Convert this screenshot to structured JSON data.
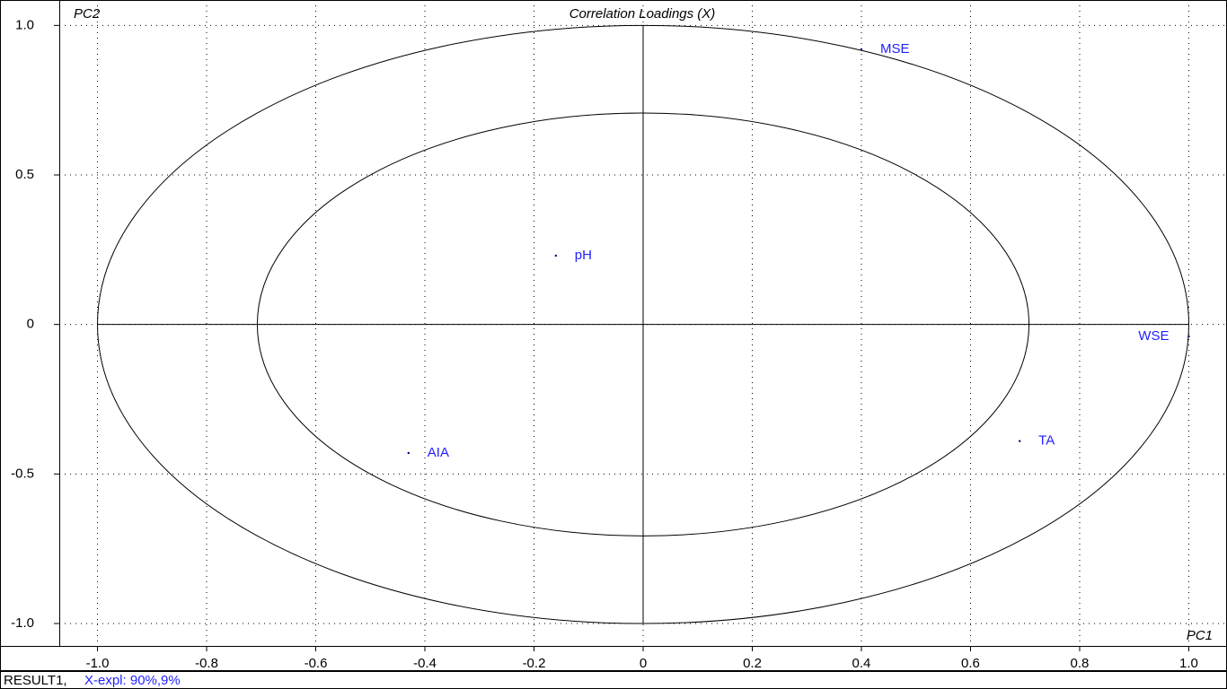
{
  "chart_data": {
    "type": "scatter",
    "title": "Correlation Loadings (X)",
    "xlabel": "PC1",
    "ylabel": "PC2",
    "labels": [
      "MSE",
      "pH",
      "WSE",
      "AIA",
      "TA"
    ],
    "x": [
      0.4,
      -0.16,
      1.0,
      -0.43,
      0.69
    ],
    "y": [
      0.92,
      0.23,
      -0.04,
      -0.43,
      -0.39
    ],
    "color": "#00007f",
    "label_color": "#1f1fff",
    "circles": [
      1,
      0.7071
    ],
    "xlim": [
      -1.07,
      1.07
    ],
    "ylim": [
      -1.075,
      1.085
    ],
    "xticks": [
      {
        "value": -1,
        "label": "-1.0"
      },
      -0.8,
      -0.6,
      -0.4,
      -0.2,
      0,
      0.2,
      0.4,
      0.6,
      0.8,
      {
        "value": 1,
        "label": "1.0"
      }
    ],
    "yticks": [
      {
        "value": -1,
        "label": "-1.0"
      },
      -0.5,
      0,
      0.5,
      {
        "value": 1,
        "label": "1.0"
      }
    ],
    "grid": true,
    "footnote": [
      "RESULT1,",
      "X-expl: 90%,9%"
    ]
  }
}
